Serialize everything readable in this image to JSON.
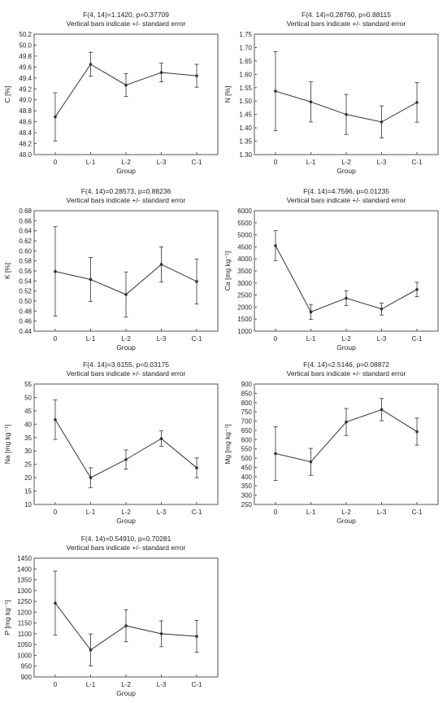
{
  "chart_data": [
    {
      "type": "line",
      "title": "F(4, 14)=1.1420, p=0.37709",
      "subtitle": "Vertical bars indicate +/- standard error",
      "xlabel": "Group",
      "ylabel": "C [%]",
      "categories": [
        "0",
        "L-1",
        "L-2",
        "L-3",
        "C-1"
      ],
      "ylim": [
        48.0,
        50.2
      ],
      "ytick_step": 0.2,
      "ytick_decimals": 1,
      "values": [
        48.69,
        49.65,
        49.27,
        49.5,
        49.44
      ],
      "errors": [
        0.44,
        0.22,
        0.21,
        0.17,
        0.21
      ],
      "grid": false
    },
    {
      "type": "line",
      "title": "F(4. 14)=0.28760, p=0.88115",
      "subtitle": "Vertical bars indicate +/- standard error",
      "xlabel": "Group",
      "ylabel": "N [%]",
      "categories": [
        "0",
        "L-1",
        "L-2",
        "L-3",
        "C-1"
      ],
      "ylim": [
        1.3,
        1.75
      ],
      "ytick_step": 0.05,
      "ytick_decimals": 2,
      "values": [
        1.537,
        1.497,
        1.45,
        1.422,
        1.495
      ],
      "errors": [
        0.148,
        0.075,
        0.075,
        0.06,
        0.074
      ],
      "grid": false
    },
    {
      "type": "line",
      "title": "F(4. 14)=0.28573, p=0.88236",
      "subtitle": "Vertical bars indicate +/- standard error",
      "xlabel": "Group",
      "ylabel": "K [%]",
      "categories": [
        "0",
        "L-1",
        "L-2",
        "L-3",
        "C-1"
      ],
      "ylim": [
        0.44,
        0.68
      ],
      "ytick_step": 0.02,
      "ytick_decimals": 2,
      "values": [
        0.559,
        0.543,
        0.513,
        0.573,
        0.539
      ],
      "errors": [
        0.089,
        0.044,
        0.045,
        0.035,
        0.045
      ],
      "grid": false
    },
    {
      "type": "line",
      "title": "F(4. 14)=4.7596, p=0.01235",
      "subtitle": "Vertical bars indicate +/- standard error",
      "xlabel": "Group",
      "ylabel": "Ca [mg kg⁻¹]",
      "categories": [
        "0",
        "L-1",
        "L-2",
        "L-3",
        "C-1"
      ],
      "ylim": [
        1000,
        6000
      ],
      "ytick_step": 500,
      "ytick_decimals": 0,
      "values": [
        4550,
        1800,
        2370,
        1920,
        2730
      ],
      "errors": [
        620,
        310,
        310,
        250,
        300
      ],
      "grid": false
    },
    {
      "type": "line",
      "title": "F(4. 14)=3.6155, p=0.03175",
      "subtitle": "Vertical bars indicate +/- standard error",
      "xlabel": "Group",
      "ylabel": "Na [mg kg⁻¹]",
      "categories": [
        "0",
        "L-1",
        "L-2",
        "L-3",
        "C-1"
      ],
      "ylim": [
        10,
        55
      ],
      "ytick_step": 5,
      "ytick_decimals": 0,
      "values": [
        41.7,
        20.0,
        26.8,
        34.6,
        23.7
      ],
      "errors": [
        7.4,
        3.7,
        3.6,
        2.9,
        3.7
      ],
      "grid": false
    },
    {
      "type": "line",
      "title": "F(4. 14)=2.5146, p=0.08872",
      "subtitle": "Vertical bars indicate +/- standard error",
      "xlabel": "Group",
      "ylabel": "Mg [mg kg⁻¹]",
      "categories": [
        "0",
        "L-1",
        "L-2",
        "L-3",
        "C-1"
      ],
      "ylim": [
        250,
        900
      ],
      "ytick_step": 50,
      "ytick_decimals": 0,
      "values": [
        525,
        480,
        695,
        762,
        643
      ],
      "errors": [
        145,
        73,
        73,
        60,
        73
      ],
      "grid": false
    },
    {
      "type": "line",
      "title": "F(4. 14)=0.54910, p=0.70281",
      "subtitle": "Vertical bars indicate +/- standard error",
      "xlabel": "Group",
      "ylabel": "P [mg kg⁻¹]",
      "categories": [
        "0",
        "L-1",
        "L-2",
        "L-3",
        "C-1"
      ],
      "ylim": [
        900,
        1450
      ],
      "ytick_step": 50,
      "ytick_decimals": 0,
      "values": [
        1242,
        1025,
        1137,
        1100,
        1088
      ],
      "errors": [
        148,
        74,
        74,
        60,
        74
      ],
      "grid": false
    }
  ],
  "colors": {
    "line": "#333333",
    "frame": "#555555",
    "text": "#222222"
  }
}
